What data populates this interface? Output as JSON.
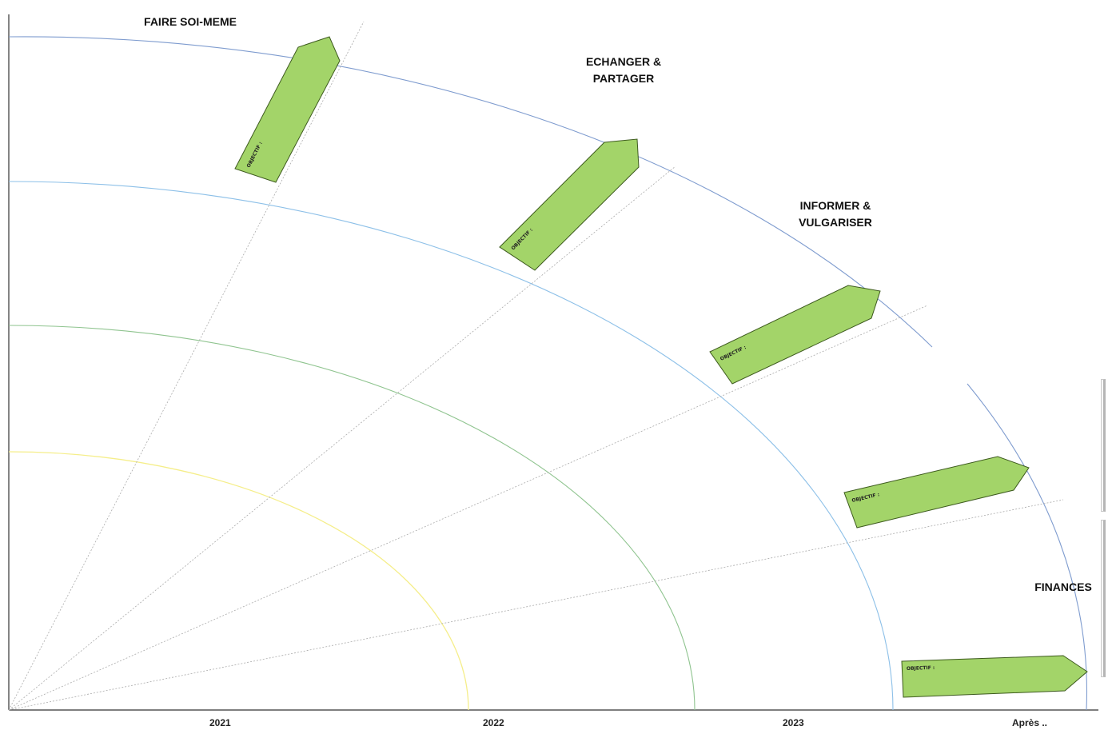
{
  "categories": [
    {
      "label": "FAIRE SOI-MEME"
    },
    {
      "label": "ECHANGER &\nPARTAGER"
    },
    {
      "label": "INFORMER &\nVULGARISER"
    },
    {
      "label": "FINANCES"
    }
  ],
  "years": [
    "2021",
    "2022",
    "2023",
    "Après .."
  ],
  "objectives": [
    {
      "label": "OBJECTIF :"
    },
    {
      "label": "OBJECTIF :"
    },
    {
      "label": "OBJECTIF :"
    },
    {
      "label": "OBJECTIF :"
    },
    {
      "label": "OBJECTIF :"
    }
  ],
  "colors": {
    "arrow_fill": "#a3d469",
    "arrow_stroke": "#3d5a1e",
    "arc_2021": "#f5ee8a",
    "arc_2022": "#8fc48f",
    "arc_2023": "#8dc0e8",
    "arc_after": "#7f9ccf",
    "axis": "#333333",
    "ray": "#aaaaaa"
  }
}
